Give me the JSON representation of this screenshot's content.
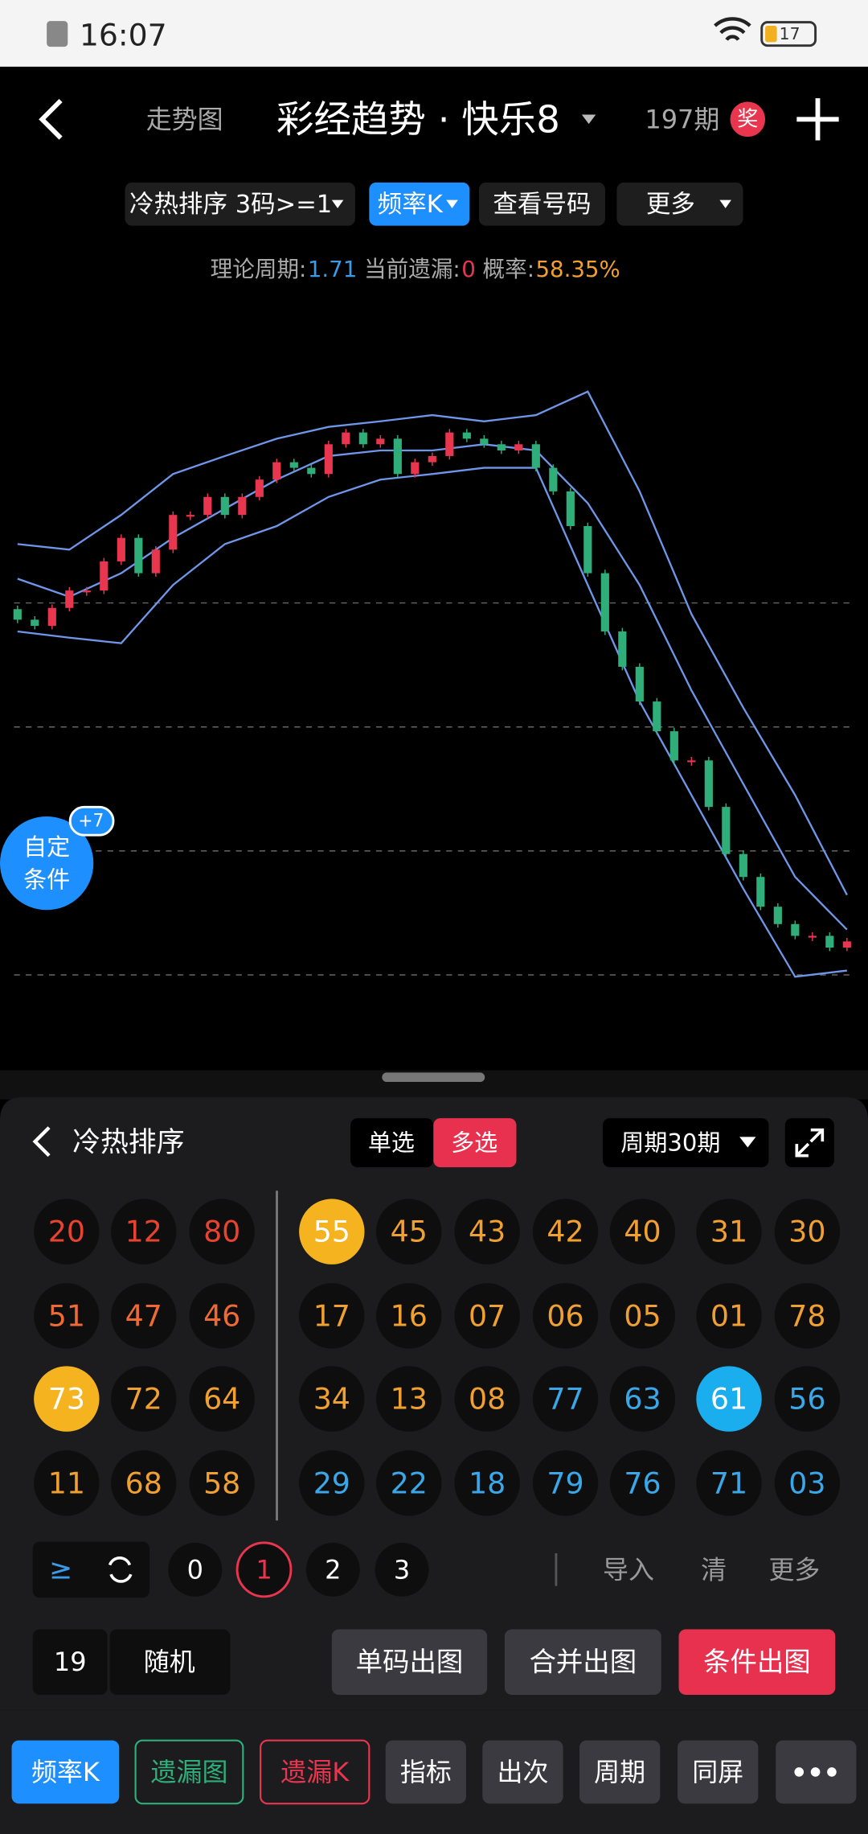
{
  "status_bar": {
    "time": "16:07",
    "battery": "17"
  },
  "header": {
    "subtitle": "走势图",
    "title": "彩经趋势 · 快乐8",
    "period": "197期",
    "award": "奖"
  },
  "toolbar": [
    "冷热排序 3码>=1",
    "频率K",
    "查看号码",
    "更多"
  ],
  "stats": [
    {
      "label": "理论周期:",
      "value": "1.71",
      "color": "#3a9be8"
    },
    {
      "label": "当前遗漏:",
      "value": "0",
      "color": "#e8364f"
    },
    {
      "label": "概率:",
      "value": "58.35%",
      "color": "#f0a030"
    }
  ],
  "chart": {
    "type": "candlestick",
    "ylim": [
      0,
      100
    ],
    "grid_lines": [
      65,
      45,
      25,
      5
    ],
    "open": [
      64,
      62.3,
      61.3,
      64.2,
      67,
      67,
      71.7,
      75.5,
      69.8,
      73.6,
      79.2,
      79.2,
      82.1,
      79.2,
      82.1,
      84.9,
      87.7,
      86.8,
      85.8,
      90.6,
      92.5,
      90.6,
      91.5,
      85.8,
      87.7,
      88.7,
      92.5,
      91.5,
      90.6,
      89.6,
      90.6,
      86.8,
      83,
      77.4,
      69.8,
      60.4,
      54.7,
      49.1,
      44.3,
      39.6,
      39.6,
      32.1,
      24.5,
      20.8,
      16,
      13.2,
      11.3,
      11.3,
      9.4
    ],
    "close": [
      62.3,
      61.3,
      64.2,
      67,
      67,
      71.7,
      75.5,
      69.8,
      73.6,
      79.2,
      79.2,
      82.1,
      79.2,
      82.1,
      84.9,
      87.7,
      86.8,
      85.8,
      90.6,
      92.5,
      90.6,
      91.5,
      85.8,
      87.7,
      88.7,
      92.5,
      91.5,
      90.6,
      89.6,
      90.6,
      86.8,
      83,
      77.4,
      69.8,
      60.4,
      54.7,
      49.1,
      44.3,
      39.6,
      39.6,
      32.1,
      24.5,
      20.8,
      16,
      13.2,
      11.3,
      11.3,
      9.4,
      10.4
    ],
    "bands": {
      "upper": [
        74.5,
        73.6,
        79.2,
        85.8,
        88.7,
        91.5,
        93.4,
        94.3,
        95.3,
        94.3,
        95.3,
        99.1,
        83,
        63.2,
        48.1,
        34,
        17.9
      ],
      "middle": [
        68.9,
        66,
        69.8,
        75.5,
        80.2,
        84.9,
        88.7,
        89.6,
        89.6,
        90.6,
        89.6,
        81.1,
        67.9,
        50.9,
        35.8,
        20.8,
        12.3
      ],
      "lower": [
        60.4,
        59.4,
        58.5,
        67.9,
        74.5,
        77.4,
        82.1,
        84.9,
        85.8,
        86.8,
        86.8,
        67.9,
        49.1,
        34,
        18.9,
        4.7,
        5.7
      ]
    },
    "band_color": "#6f96e8"
  },
  "float_button": {
    "line1": "自定",
    "line2": "条件",
    "badge": "+7"
  },
  "panel": {
    "title": "冷热排序",
    "single": "单选",
    "multi": "多选",
    "cycle": "周期30期",
    "left_grid": [
      [
        {
          "n": "20",
          "tone": "red"
        },
        {
          "n": "12",
          "tone": "red"
        },
        {
          "n": "80",
          "tone": "red"
        }
      ],
      [
        {
          "n": "51",
          "tone": "orangered"
        },
        {
          "n": "47",
          "tone": "orangered"
        },
        {
          "n": "46",
          "tone": "orangered"
        }
      ],
      [
        {
          "n": "73",
          "tone": "selected-yellow"
        },
        {
          "n": "72",
          "tone": "orange"
        },
        {
          "n": "64",
          "tone": "orange"
        }
      ],
      [
        {
          "n": "11",
          "tone": "orange"
        },
        {
          "n": "68",
          "tone": "orange"
        },
        {
          "n": "58",
          "tone": "orange"
        }
      ]
    ],
    "right_grid": [
      [
        {
          "n": "55",
          "tone": "selected-yellow"
        },
        {
          "n": "45",
          "tone": "orange"
        },
        {
          "n": "43",
          "tone": "orange"
        },
        {
          "n": "42",
          "tone": "orange"
        },
        {
          "n": "40",
          "tone": "orange"
        },
        {
          "n": "31",
          "tone": "orange"
        },
        {
          "n": "30",
          "tone": "orange"
        }
      ],
      [
        {
          "n": "17",
          "tone": "orange"
        },
        {
          "n": "16",
          "tone": "orange"
        },
        {
          "n": "07",
          "tone": "orange"
        },
        {
          "n": "06",
          "tone": "orange"
        },
        {
          "n": "05",
          "tone": "orange"
        },
        {
          "n": "01",
          "tone": "orange"
        },
        {
          "n": "78",
          "tone": "orange"
        }
      ],
      [
        {
          "n": "34",
          "tone": "orange"
        },
        {
          "n": "13",
          "tone": "orange"
        },
        {
          "n": "08",
          "tone": "orange"
        },
        {
          "n": "77",
          "tone": "blue"
        },
        {
          "n": "63",
          "tone": "blue"
        },
        {
          "n": "61",
          "tone": "selected-blue"
        },
        {
          "n": "56",
          "tone": "blue"
        }
      ],
      [
        {
          "n": "29",
          "tone": "blue"
        },
        {
          "n": "22",
          "tone": "blue"
        },
        {
          "n": "18",
          "tone": "blue"
        },
        {
          "n": "79",
          "tone": "blue"
        },
        {
          "n": "76",
          "tone": "blue"
        },
        {
          "n": "71",
          "tone": "blue"
        },
        {
          "n": "03",
          "tone": "blue"
        }
      ]
    ]
  },
  "controls": {
    "compare": "≥",
    "digits": [
      "0",
      "1",
      "2",
      "3"
    ],
    "active_digit": 1,
    "import": "导入",
    "clear": "清",
    "more": "更多"
  },
  "actions": {
    "count": "19",
    "random": "随机",
    "buttons": [
      "单码出图",
      "合并出图",
      "条件出图"
    ]
  },
  "tabs": [
    {
      "label": "频率K",
      "style": "active"
    },
    {
      "label": "遗漏图",
      "style": "green-outline"
    },
    {
      "label": "遗漏K",
      "style": "red-outline"
    },
    {
      "label": "指标",
      "style": "plain"
    },
    {
      "label": "出次",
      "style": "plain"
    },
    {
      "label": "周期",
      "style": "plain"
    },
    {
      "label": "同屏",
      "style": "plain"
    }
  ]
}
